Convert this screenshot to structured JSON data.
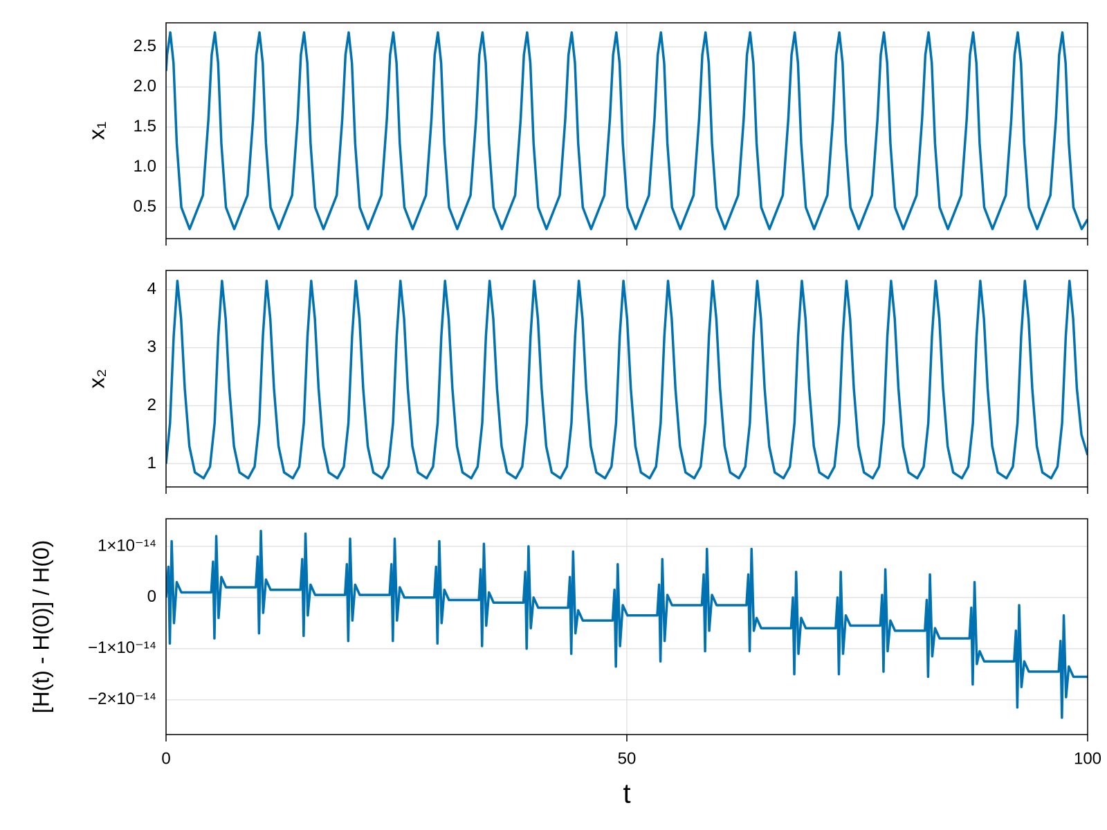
{
  "chart_data": [
    {
      "type": "line",
      "ylabel": "x₁",
      "color": "#0072b2",
      "grid": true,
      "xlim": [
        0,
        100
      ],
      "xticks": [
        0,
        50,
        100
      ],
      "ylim": [
        0.11,
        2.8
      ],
      "yticks": [
        0.5,
        {
          "value": 1,
          "label": "1.0"
        },
        1.5,
        {
          "value": 2,
          "label": "2.0"
        },
        2.5
      ],
      "x": [
        0,
        0.11,
        0.46,
        0.81,
        1.16,
        1.66,
        2.56,
        4.0,
        4.6,
        4.95,
        5.3,
        5.65,
        6.0,
        6.5,
        7.4,
        8.84,
        9.44,
        9.79,
        10.14,
        10.49,
        10.84,
        11.34,
        12.24,
        13.68,
        14.28,
        14.63,
        14.98,
        15.33,
        15.68,
        16.18,
        17.08,
        18.52,
        19.12,
        19.47,
        19.82,
        20.17,
        20.52,
        21.02,
        21.92,
        23.36,
        23.96,
        24.31,
        24.66,
        25.01,
        25.36,
        25.86,
        26.76,
        28.2,
        28.8,
        29.15,
        29.5,
        29.85,
        30.2,
        30.7,
        31.6,
        33.04,
        33.64,
        33.99,
        34.34,
        34.69,
        35.04,
        35.54,
        36.44,
        37.88,
        38.48,
        38.83,
        39.18,
        39.53,
        39.88,
        40.38,
        41.28,
        42.72,
        43.32,
        43.67,
        44.02,
        44.37,
        44.72,
        45.22,
        46.12,
        47.56,
        48.16,
        48.51,
        48.86,
        49.21,
        49.56,
        50.06,
        50.96,
        52.4,
        53.0,
        53.35,
        53.7,
        54.05,
        54.4,
        54.9,
        55.8,
        57.24,
        57.84,
        58.19,
        58.54,
        58.89,
        59.24,
        59.74,
        60.64,
        62.08,
        62.68,
        63.03,
        63.38,
        63.73,
        64.08,
        64.58,
        65.48,
        66.92,
        67.52,
        67.87,
        68.22,
        68.57,
        68.92,
        69.42,
        70.32,
        71.76,
        72.36,
        72.71,
        73.06,
        73.41,
        73.76,
        74.26,
        75.16,
        76.6,
        77.2,
        77.55,
        77.9,
        78.25,
        78.6,
        79.1,
        80.0,
        81.44,
        82.04,
        82.39,
        82.74,
        83.09,
        83.44,
        83.94,
        84.84,
        86.28,
        86.88,
        87.23,
        87.58,
        87.93,
        88.28,
        88.78,
        89.68,
        91.12,
        91.72,
        92.07,
        92.42,
        92.77,
        93.12,
        93.62,
        94.52,
        95.96,
        96.56,
        96.91,
        97.26,
        97.61,
        97.96,
        98.46,
        99.36,
        100
      ],
      "values": [
        2.2,
        2.4,
        2.68,
        2.3,
        1.3,
        0.5,
        0.23,
        0.65,
        1.6,
        2.4,
        2.68,
        2.3,
        1.3,
        0.5,
        0.23,
        0.65,
        1.6,
        2.4,
        2.68,
        2.3,
        1.3,
        0.5,
        0.23,
        0.65,
        1.6,
        2.4,
        2.68,
        2.3,
        1.3,
        0.5,
        0.23,
        0.65,
        1.6,
        2.4,
        2.68,
        2.3,
        1.3,
        0.5,
        0.23,
        0.65,
        1.6,
        2.4,
        2.68,
        2.3,
        1.3,
        0.5,
        0.23,
        0.65,
        1.6,
        2.4,
        2.68,
        2.3,
        1.3,
        0.5,
        0.23,
        0.65,
        1.6,
        2.4,
        2.68,
        2.3,
        1.3,
        0.5,
        0.23,
        0.65,
        1.6,
        2.4,
        2.68,
        2.3,
        1.3,
        0.5,
        0.23,
        0.65,
        1.6,
        2.4,
        2.68,
        2.3,
        1.3,
        0.5,
        0.23,
        0.65,
        1.6,
        2.4,
        2.68,
        2.3,
        1.3,
        0.5,
        0.23,
        0.65,
        1.6,
        2.4,
        2.68,
        2.3,
        1.3,
        0.5,
        0.23,
        0.65,
        1.6,
        2.4,
        2.68,
        2.3,
        1.3,
        0.5,
        0.23,
        0.65,
        1.6,
        2.4,
        2.68,
        2.3,
        1.3,
        0.5,
        0.23,
        0.65,
        1.6,
        2.4,
        2.68,
        2.3,
        1.3,
        0.5,
        0.23,
        0.65,
        1.6,
        2.4,
        2.68,
        2.3,
        1.3,
        0.5,
        0.23,
        0.65,
        1.6,
        2.4,
        2.68,
        2.3,
        1.3,
        0.5,
        0.23,
        0.65,
        1.6,
        2.4,
        2.68,
        2.3,
        1.3,
        0.5,
        0.23,
        0.65,
        1.6,
        2.4,
        2.68,
        2.3,
        1.3,
        0.5,
        0.23,
        0.65,
        1.6,
        2.4,
        2.68,
        2.3,
        1.3,
        0.5,
        0.23,
        0.65,
        1.6,
        2.4,
        2.68,
        2.3,
        1.3,
        0.5,
        0.23,
        0.35
      ]
    },
    {
      "type": "line",
      "ylabel": "x₂",
      "color": "#0072b2",
      "grid": true,
      "xlim": [
        0,
        100
      ],
      "xticks": [
        0,
        50,
        100
      ],
      "ylim": [
        0.6,
        4.33
      ],
      "yticks": [
        1,
        2,
        3,
        4
      ],
      "x": [
        0,
        0.43,
        0.83,
        1.23,
        1.63,
        2.03,
        2.53,
        3.13,
        4.08,
        4.77,
        5.27,
        5.67,
        6.07,
        6.47,
        6.87,
        7.37,
        7.97,
        8.92,
        9.61,
        10.11,
        10.51,
        10.91,
        11.31,
        11.71,
        12.21,
        12.81,
        13.76,
        14.45,
        14.95,
        15.35,
        15.75,
        16.15,
        16.55,
        17.05,
        17.65,
        18.6,
        19.29,
        19.79,
        20.19,
        20.59,
        20.99,
        21.39,
        21.89,
        22.49,
        23.44,
        24.13,
        24.63,
        25.03,
        25.43,
        25.83,
        26.23,
        26.73,
        27.33,
        28.28,
        28.97,
        29.47,
        29.87,
        30.27,
        30.67,
        31.07,
        31.57,
        32.17,
        33.12,
        33.81,
        34.31,
        34.71,
        35.11,
        35.51,
        35.91,
        36.41,
        37.01,
        37.96,
        38.65,
        39.15,
        39.55,
        39.95,
        40.35,
        40.75,
        41.25,
        41.85,
        42.8,
        43.49,
        43.99,
        44.39,
        44.79,
        45.19,
        45.59,
        46.09,
        46.69,
        47.64,
        48.33,
        48.83,
        49.23,
        49.63,
        50.03,
        50.43,
        50.93,
        51.53,
        52.48,
        53.17,
        53.67,
        54.07,
        54.47,
        54.87,
        55.27,
        55.77,
        56.37,
        57.32,
        58.01,
        58.51,
        58.91,
        59.31,
        59.71,
        60.11,
        60.61,
        61.21,
        62.16,
        62.85,
        63.35,
        63.75,
        64.15,
        64.55,
        64.95,
        65.45,
        66.05,
        67.0,
        67.69,
        68.19,
        68.59,
        68.99,
        69.39,
        69.79,
        70.29,
        70.89,
        71.84,
        72.53,
        73.03,
        73.43,
        73.83,
        74.23,
        74.63,
        75.13,
        75.73,
        76.68,
        77.37,
        77.87,
        78.27,
        78.67,
        79.07,
        79.47,
        79.97,
        80.57,
        81.52,
        82.21,
        82.71,
        83.11,
        83.51,
        83.91,
        84.31,
        84.81,
        85.41,
        86.36,
        87.05,
        87.55,
        87.95,
        88.35,
        88.75,
        89.15,
        89.65,
        90.25,
        91.2,
        91.89,
        92.39,
        92.79,
        93.19,
        93.59,
        93.99,
        94.49,
        95.09,
        96.04,
        96.73,
        97.23,
        97.63,
        98.03,
        98.43,
        98.83,
        99.33,
        100
      ],
      "values": [
        1.0,
        1.7,
        3.2,
        4.15,
        3.5,
        2.3,
        1.3,
        0.85,
        0.75,
        0.95,
        1.7,
        3.2,
        4.15,
        3.5,
        2.3,
        1.3,
        0.85,
        0.75,
        0.95,
        1.7,
        3.2,
        4.15,
        3.5,
        2.3,
        1.3,
        0.85,
        0.75,
        0.95,
        1.7,
        3.2,
        4.15,
        3.5,
        2.3,
        1.3,
        0.85,
        0.75,
        0.95,
        1.7,
        3.2,
        4.15,
        3.5,
        2.3,
        1.3,
        0.85,
        0.75,
        0.95,
        1.7,
        3.2,
        4.15,
        3.5,
        2.3,
        1.3,
        0.85,
        0.75,
        0.95,
        1.7,
        3.2,
        4.15,
        3.5,
        2.3,
        1.3,
        0.85,
        0.75,
        0.95,
        1.7,
        3.2,
        4.15,
        3.5,
        2.3,
        1.3,
        0.85,
        0.75,
        0.95,
        1.7,
        3.2,
        4.15,
        3.5,
        2.3,
        1.3,
        0.85,
        0.75,
        0.95,
        1.7,
        3.2,
        4.15,
        3.5,
        2.3,
        1.3,
        0.85,
        0.75,
        0.95,
        1.7,
        3.2,
        4.15,
        3.5,
        2.3,
        1.3,
        0.85,
        0.75,
        0.95,
        1.7,
        3.2,
        4.15,
        3.5,
        2.3,
        1.3,
        0.85,
        0.75,
        0.95,
        1.7,
        3.2,
        4.15,
        3.5,
        2.3,
        1.3,
        0.85,
        0.75,
        0.95,
        1.7,
        3.2,
        4.15,
        3.5,
        2.3,
        1.3,
        0.85,
        0.75,
        0.95,
        1.7,
        3.2,
        4.15,
        3.5,
        2.3,
        1.3,
        0.85,
        0.75,
        0.95,
        1.7,
        3.2,
        4.15,
        3.5,
        2.3,
        1.3,
        0.85,
        0.75,
        0.95,
        1.7,
        3.2,
        4.15,
        3.5,
        2.3,
        1.3,
        0.85,
        0.75,
        0.95,
        1.7,
        3.2,
        4.15,
        3.5,
        2.3,
        1.3,
        0.85,
        0.75,
        0.95,
        1.7,
        3.2,
        4.15,
        3.5,
        2.3,
        1.3,
        0.85,
        0.75,
        0.95,
        1.7,
        3.2,
        4.15,
        3.5,
        2.3,
        1.3,
        0.85,
        0.75,
        0.95,
        1.7,
        3.2,
        4.15,
        3.5,
        2.3,
        1.5,
        1.15
      ]
    },
    {
      "type": "line",
      "ylabel": "[H(t) - H(0)] / H(0)",
      "xlabel": "t",
      "color": "#0072b2",
      "grid": true,
      "xlim": [
        0,
        100
      ],
      "xticks": [
        0,
        50,
        100
      ],
      "ylim": [
        -2.68e-14,
        1.54e-14
      ],
      "yticks": [
        {
          "value": -2e-14,
          "label": "−2×10⁻¹⁴"
        },
        {
          "value": -1e-14,
          "label": "−1×10⁻¹⁴"
        },
        0,
        {
          "value": 1e-14,
          "label": "1×10⁻¹⁴"
        }
      ],
      "x": [
        0,
        0.26,
        0.41,
        0.61,
        0.86,
        1.16,
        1.66,
        4.9,
        5.1,
        5.25,
        5.45,
        5.7,
        6.0,
        6.5,
        9.74,
        9.94,
        10.09,
        10.29,
        10.54,
        10.84,
        11.34,
        14.58,
        14.78,
        14.93,
        15.13,
        15.38,
        15.68,
        16.18,
        19.42,
        19.62,
        19.77,
        19.97,
        20.22,
        20.52,
        21.02,
        24.26,
        24.46,
        24.61,
        24.81,
        25.06,
        25.36,
        25.86,
        29.1,
        29.3,
        29.45,
        29.65,
        29.9,
        30.2,
        30.7,
        33.94,
        34.14,
        34.29,
        34.49,
        34.74,
        35.04,
        35.54,
        38.78,
        38.98,
        39.13,
        39.33,
        39.58,
        39.88,
        40.38,
        43.62,
        43.82,
        43.97,
        44.17,
        44.42,
        44.72,
        45.22,
        48.46,
        48.66,
        48.81,
        49.01,
        49.26,
        49.56,
        50.06,
        53.3,
        53.5,
        53.65,
        53.85,
        54.1,
        54.4,
        54.9,
        58.14,
        58.34,
        58.49,
        58.69,
        58.94,
        59.24,
        59.74,
        62.98,
        63.18,
        63.33,
        63.53,
        63.78,
        64.08,
        64.58,
        67.82,
        68.02,
        68.17,
        68.37,
        68.62,
        68.92,
        69.42,
        72.66,
        72.86,
        73.01,
        73.21,
        73.46,
        73.76,
        74.26,
        77.5,
        77.7,
        77.85,
        78.05,
        78.3,
        78.6,
        79.1,
        82.34,
        82.54,
        82.69,
        82.89,
        83.14,
        83.44,
        83.94,
        87.18,
        87.38,
        87.53,
        87.73,
        87.98,
        88.28,
        88.78,
        92.02,
        92.22,
        92.37,
        92.57,
        92.82,
        93.12,
        93.62,
        96.86,
        97.06,
        97.21,
        97.41,
        97.66,
        97.96,
        98.46,
        100
      ],
      "values": [
        0,
        6e-15,
        -9e-15,
        1.1e-14,
        -5e-15,
        3e-15,
        1e-15,
        1e-15,
        7e-15,
        -8e-15,
        1.2e-14,
        -4e-15,
        4e-15,
        2e-15,
        2e-15,
        8e-15,
        -7e-15,
        1.3e-14,
        -3e-15,
        3.5e-15,
        1.5e-15,
        1.5e-15,
        7.5e-15,
        -7.5e-15,
        1.25e-14,
        -3.5e-15,
        2.5e-15,
        5e-16,
        5e-16,
        6.5e-15,
        -8.5e-15,
        1.15e-14,
        -4.5e-15,
        2.5e-15,
        5e-16,
        5e-16,
        6.5e-15,
        -8.5e-15,
        1.15e-14,
        -4.5e-15,
        2e-15,
        0,
        0,
        6e-15,
        -9e-15,
        1.1e-14,
        -5e-15,
        1.5e-15,
        -5e-16,
        -5e-16,
        5.5e-15,
        -9.5e-15,
        1.05e-14,
        -5.5e-15,
        1e-15,
        -1e-15,
        -1e-15,
        5e-15,
        -1e-14,
        1e-14,
        -6e-15,
        0,
        -2e-15,
        -2e-15,
        4e-15,
        -1.1e-14,
        9e-15,
        -7e-15,
        -2.5e-15,
        -4.5e-15,
        -4.5e-15,
        1.5e-15,
        -1.35e-14,
        6.5e-15,
        -9.5e-15,
        -1.5e-15,
        -3.5e-15,
        -3.5e-15,
        2.5e-15,
        -1.25e-14,
        7.5e-15,
        -8.5e-15,
        5e-16,
        -1.5e-15,
        -1.5e-15,
        4.5e-15,
        -1.05e-14,
        9.5e-15,
        -6.5e-15,
        5e-16,
        -1.5e-15,
        -1.5e-15,
        4.5e-15,
        -1.05e-14,
        9.5e-15,
        -6.5e-15,
        -4e-15,
        -6e-15,
        -6e-15,
        0,
        -1.5e-14,
        5e-15,
        -1.1e-14,
        -4e-15,
        -6e-15,
        -6e-15,
        0,
        -1.5e-14,
        5e-15,
        -1.1e-14,
        -3.5e-15,
        -5.5e-15,
        -5.5e-15,
        5e-16,
        -1.45e-14,
        5.5e-15,
        -1.05e-14,
        -4.5e-15,
        -6.5e-15,
        -6.5e-15,
        -5e-16,
        -1.55e-14,
        4.5e-15,
        -1.15e-14,
        -6e-15,
        -8e-15,
        -8e-15,
        -2e-15,
        -1.7e-14,
        3e-15,
        -1.3e-14,
        -1.05e-14,
        -1.25e-14,
        -1.25e-14,
        -6.5e-15,
        -2.15e-14,
        -1.5e-15,
        -1.75e-14,
        -1.25e-14,
        -1.45e-14,
        -1.45e-14,
        -8.5e-15,
        -2.35e-14,
        -3.5e-15,
        -1.95e-14,
        -1.35e-14,
        -1.55e-14,
        -1.55e-14
      ]
    }
  ]
}
